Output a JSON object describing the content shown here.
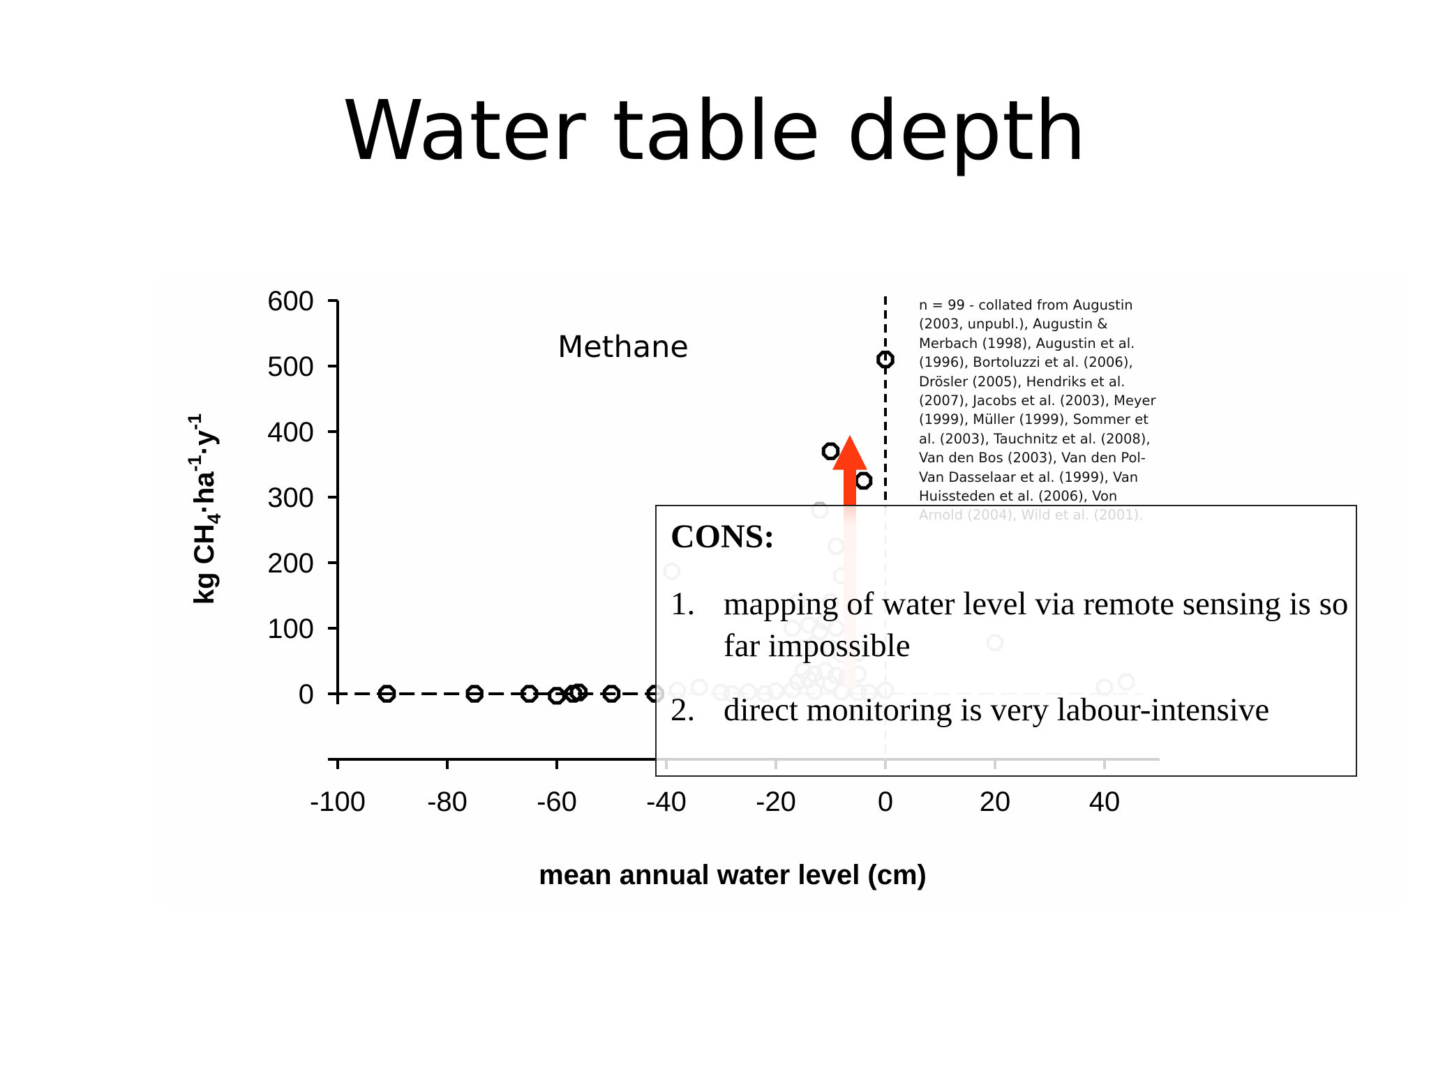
{
  "slide": {
    "title": "Water table depth"
  },
  "chart_data": {
    "type": "scatter",
    "title": "Methane",
    "xlabel": "mean annual water level (cm)",
    "ylabel_parts": [
      "kg CH",
      "4",
      "·ha",
      "-1",
      "·y",
      "-1"
    ],
    "xlim": [
      -100,
      50
    ],
    "ylim": [
      0,
      600
    ],
    "x_ticks": [
      -100,
      -80,
      -60,
      -40,
      -20,
      0,
      20,
      40
    ],
    "y_ticks": [
      0,
      100,
      200,
      300,
      400,
      500,
      600
    ],
    "x_tick_labels": [
      "-100",
      "-80",
      "-60",
      "-40",
      "-20",
      "0",
      "20",
      "40"
    ],
    "y_tick_labels": [
      "0",
      "100",
      "200",
      "300",
      "400",
      "500",
      "600"
    ],
    "grid": false,
    "reference_line": {
      "x": 0,
      "style": "dashed"
    },
    "trend_line": {
      "style": "dashed",
      "points": [
        [
          -100,
          0
        ],
        [
          -40,
          0
        ]
      ]
    },
    "arrow": {
      "color": "#ff3a10",
      "from": [
        -6.5,
        0
      ],
      "to": [
        -6.5,
        395
      ],
      "direction": "up"
    },
    "series": [
      {
        "color": "#000000",
        "points": [
          [
            -91,
            0
          ],
          [
            -75,
            0
          ],
          [
            -65,
            0
          ],
          [
            -60,
            -3
          ],
          [
            -57,
            0
          ],
          [
            -56,
            2
          ],
          [
            -50,
            0
          ],
          [
            -42,
            0
          ],
          [
            0,
            510
          ],
          [
            -10,
            370
          ],
          [
            -4,
            325
          ]
        ]
      },
      {
        "color": "#bbbbbb",
        "points": [
          [
            -12,
            280
          ],
          [
            -9,
            225
          ],
          [
            -39,
            187
          ],
          [
            -8,
            180
          ],
          [
            -16,
            140
          ],
          [
            -10,
            140
          ],
          [
            -17,
            100
          ],
          [
            -14,
            105
          ],
          [
            -12,
            95
          ],
          [
            -11,
            110
          ],
          [
            -9,
            100
          ],
          [
            -15,
            70
          ],
          [
            -13,
            75
          ],
          [
            -10,
            70
          ],
          [
            -8,
            60
          ],
          [
            -5,
            62
          ],
          [
            -15,
            35
          ],
          [
            -13,
            30
          ],
          [
            -11,
            35
          ],
          [
            -9,
            28
          ],
          [
            -16,
            18
          ],
          [
            -14,
            22
          ],
          [
            -10,
            15
          ],
          [
            -7,
            25
          ],
          [
            -5,
            30
          ],
          [
            -38,
            5
          ],
          [
            -34,
            10
          ],
          [
            -30,
            2
          ],
          [
            -28,
            0
          ],
          [
            -25,
            3
          ],
          [
            -22,
            0
          ],
          [
            -20,
            4
          ],
          [
            -17,
            6
          ],
          [
            -13,
            4
          ],
          [
            -8,
            3
          ],
          [
            -5,
            2
          ],
          [
            -3,
            2
          ],
          [
            0,
            5
          ],
          [
            20,
            78
          ],
          [
            40,
            10
          ],
          [
            44,
            18
          ]
        ]
      }
    ],
    "annotation": "n = 99 - collated from Augustin (2003, unpubl.), Augustin & Merbach (1998), Augustin et al. (1996), Bortoluzzi et al. (2006), Drösler (2005), Hendriks et al. (2007), Jacobs et al. (2003), Meyer (1999), Müller (1999), Sommer et al. (2003), Tauchnitz et al. (2008), Van den Bos (2003), Van den Pol-Van Dasselaar et al. (1999), Van Huissteden et al. (2006), Von Arnold (2004), Wild et al. (2001)."
  },
  "reference_lines": [
    "n = 99 - collated from Augustin",
    "(2003, unpubl.), Augustin &",
    "Merbach (1998), Augustin et al.",
    "(1996), Bortoluzzi et al. (2006),",
    "Drösler (2005), Hendriks et al.",
    "(2007), Jacobs et al. (2003), Meyer",
    "(1999), Müller (1999), Sommer et",
    "al. (2003), Tauchnitz et al. (2008),",
    "Van den Bos (2003), Van den Pol-",
    "Van Dasselaar et al. (1999), Van",
    "Huissteden et al. (2006), Von",
    "Arnold (2004), Wild et al. (2001)."
  ],
  "cons": {
    "heading": "CONS:",
    "items": [
      {
        "num": "1.",
        "text": "mapping of water level via remote sensing is so far impossible"
      },
      {
        "num": "2.",
        "text": "direct monitoring is very labour-intensive"
      }
    ]
  }
}
